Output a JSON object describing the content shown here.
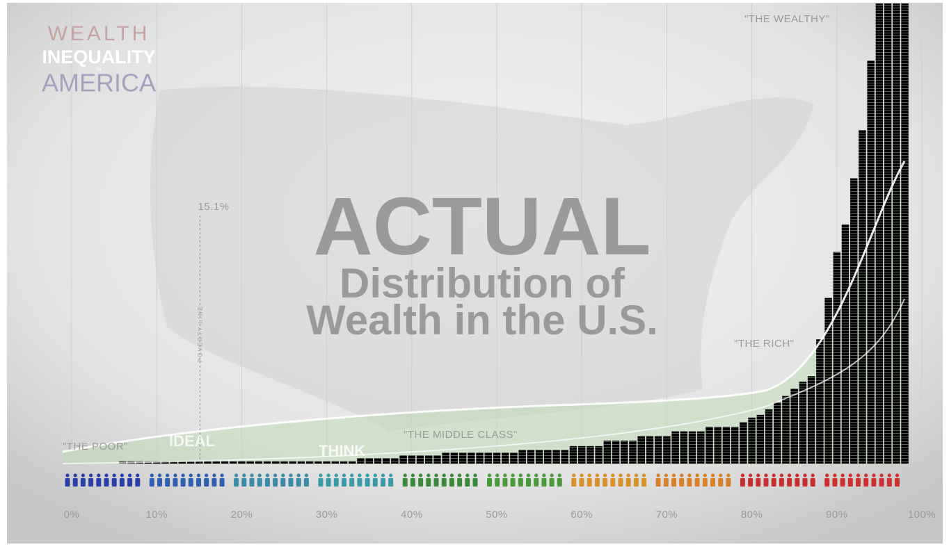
{
  "chart_data": {
    "type": "bar",
    "logo": {
      "line1": "WEALTH",
      "line2": "INEQUALITY",
      "line3": "IN",
      "line4": "AMERICA"
    },
    "title": {
      "line1": "ACTUAL",
      "line2": "Distribution of",
      "line3": "Wealth in the U.S."
    },
    "annotations": {
      "poor": "\"THE POOR\"",
      "middle": "\"THE MIDDLE CLASS\"",
      "rich": "\"THE RICH\"",
      "wealthy": "\"THE WEALTHY\"",
      "ideal": "IDEAL",
      "think": "THINK"
    },
    "poverty_line": {
      "name": "POVERTY LINE",
      "x": 15.1,
      "label": "15.1%"
    },
    "x": [
      6,
      7,
      8,
      9,
      10,
      11,
      12,
      13,
      14,
      15,
      16,
      17,
      18,
      19,
      20,
      21,
      22,
      23,
      24,
      25,
      26,
      27,
      28,
      29,
      30,
      31,
      32,
      33,
      34,
      35,
      36,
      37,
      38,
      39,
      40,
      41,
      42,
      43,
      44,
      45,
      46,
      47,
      48,
      49,
      50,
      51,
      52,
      53,
      54,
      55,
      56,
      57,
      58,
      59,
      60,
      61,
      62,
      63,
      64,
      65,
      66,
      67,
      68,
      69,
      70,
      71,
      72,
      73,
      74,
      75,
      76,
      77,
      78,
      79,
      80,
      81,
      82,
      83,
      84,
      85,
      86,
      87,
      88,
      89,
      90,
      91,
      92,
      93,
      94,
      95,
      96,
      97,
      98
    ],
    "values": [
      0.5,
      0.5,
      0.5,
      0.5,
      0.5,
      0.5,
      0.5,
      0.5,
      0.5,
      0.5,
      0.5,
      0.5,
      0.5,
      0.5,
      0.5,
      0.5,
      0.5,
      0.5,
      0.5,
      0.5,
      0.5,
      0.5,
      0.5,
      0.5,
      0.5,
      0.5,
      0.5,
      0.5,
      1.2,
      1.2,
      1.2,
      1.2,
      1.2,
      1.8,
      1.8,
      1.8,
      1.8,
      1.8,
      2.4,
      2.4,
      2.4,
      2.4,
      2.4,
      2.4,
      2.4,
      2.4,
      2.4,
      3,
      3,
      3,
      3,
      3,
      3,
      3.8,
      3.8,
      3.8,
      3.8,
      5,
      5,
      5,
      5,
      6,
      6,
      6,
      6,
      7,
      7,
      7,
      7,
      8,
      8,
      8,
      8,
      9,
      10,
      10.6,
      11.8,
      13.3,
      14.7,
      16.3,
      17.8,
      19,
      27,
      36,
      46,
      52,
      62,
      72.5,
      87.6,
      100,
      100,
      100,
      100
    ],
    "color": "#5a9e4a",
    "xlim": [
      0,
      100
    ],
    "ylim": [
      0,
      100
    ],
    "xticks": [
      {
        "value": 0,
        "label": "0%"
      },
      {
        "value": 10,
        "label": "10%"
      },
      {
        "value": 20,
        "label": "20%"
      },
      {
        "value": 30,
        "label": "30%"
      },
      {
        "value": 40,
        "label": "40%"
      },
      {
        "value": 50,
        "label": "50%"
      },
      {
        "value": 60,
        "label": "60%"
      },
      {
        "value": 70,
        "label": "70%"
      },
      {
        "value": 80,
        "label": "80%"
      },
      {
        "value": 90,
        "label": "90%"
      },
      {
        "value": 100,
        "label": "100%"
      }
    ],
    "grid": true,
    "icon_colors": [
      "#2a3fa8",
      "#2f5fb0",
      "#3a8aa8",
      "#3a9aa8",
      "#3a8a3a",
      "#4a9a3a",
      "#d8902a",
      "#d8802a",
      "#c83030",
      "#d03030"
    ]
  }
}
